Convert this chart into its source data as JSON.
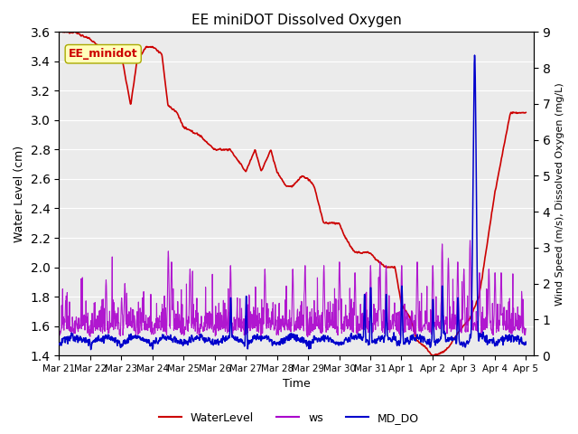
{
  "title": "EE miniDOT Dissolved Oxygen",
  "xlabel": "Time",
  "ylabel_left": "Water Level (cm)",
  "ylabel_right": "Wind Speed (m/s), Dissolved Oxygen (mg/L)",
  "annotation_text": "EE_minidot",
  "ylim_left": [
    1.4,
    3.6
  ],
  "ylim_right": [
    0.0,
    9.0
  ],
  "yticks_left": [
    1.4,
    1.6,
    1.8,
    2.0,
    2.2,
    2.4,
    2.6,
    2.8,
    3.0,
    3.2,
    3.4,
    3.6
  ],
  "yticks_right": [
    0.0,
    1.0,
    2.0,
    3.0,
    4.0,
    5.0,
    6.0,
    7.0,
    8.0,
    9.0
  ],
  "bg_color": "#ebebeb",
  "fig_color": "#ffffff",
  "legend_items": [
    "WaterLevel",
    "ws",
    "MD_DO"
  ],
  "wl_color": "#cc0000",
  "ws_color": "#aa00cc",
  "do_color": "#0000cc",
  "grid_color": "#ffffff",
  "annotation_facecolor": "#ffffbb",
  "annotation_edgecolor": "#aaaa00"
}
